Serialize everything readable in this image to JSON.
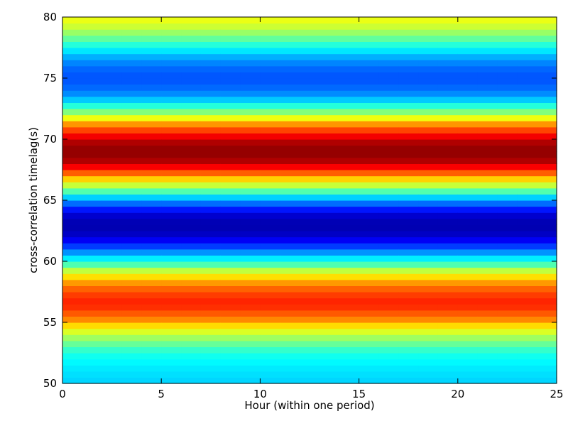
{
  "chart_data": {
    "type": "heatmap",
    "title": "",
    "xlabel": "Hour (within one period)",
    "ylabel": "cross-correlation timelag(s)",
    "xlim": [
      0,
      25
    ],
    "ylim": [
      50,
      80
    ],
    "x_ticks": [
      0,
      5,
      10,
      15,
      20,
      25
    ],
    "y_ticks": [
      50,
      55,
      60,
      65,
      70,
      75,
      80
    ],
    "colormap": "jet",
    "x_bins": 25,
    "profile": [
      {
        "lag": 50,
        "value": 0.33
      },
      {
        "lag": 51.5,
        "value": 0.36
      },
      {
        "lag": 52.5,
        "value": 0.4
      },
      {
        "lag": 53.5,
        "value": 0.5
      },
      {
        "lag": 54.5,
        "value": 0.62
      },
      {
        "lag": 55.3,
        "value": 0.75
      },
      {
        "lag": 56.5,
        "value": 0.85
      },
      {
        "lag": 57.2,
        "value": 0.82
      },
      {
        "lag": 58.0,
        "value": 0.76
      },
      {
        "lag": 59.0,
        "value": 0.62
      },
      {
        "lag": 59.8,
        "value": 0.44
      },
      {
        "lag": 60.8,
        "value": 0.26
      },
      {
        "lag": 61.5,
        "value": 0.14
      },
      {
        "lag": 62.2,
        "value": 0.07
      },
      {
        "lag": 63.0,
        "value": 0.04
      },
      {
        "lag": 63.8,
        "value": 0.08
      },
      {
        "lag": 64.5,
        "value": 0.18
      },
      {
        "lag": 65.3,
        "value": 0.34
      },
      {
        "lag": 66.0,
        "value": 0.52
      },
      {
        "lag": 66.8,
        "value": 0.68
      },
      {
        "lag": 67.5,
        "value": 0.84
      },
      {
        "lag": 68.2,
        "value": 0.95
      },
      {
        "lag": 69.0,
        "value": 0.99
      },
      {
        "lag": 69.8,
        "value": 0.95
      },
      {
        "lag": 70.5,
        "value": 0.85
      },
      {
        "lag": 71.3,
        "value": 0.72
      },
      {
        "lag": 72.0,
        "value": 0.55
      },
      {
        "lag": 72.8,
        "value": 0.4
      },
      {
        "lag": 73.5,
        "value": 0.28
      },
      {
        "lag": 74.5,
        "value": 0.21
      },
      {
        "lag": 75.5,
        "value": 0.21
      },
      {
        "lag": 76.5,
        "value": 0.27
      },
      {
        "lag": 77.5,
        "value": 0.38
      },
      {
        "lag": 78.5,
        "value": 0.5
      },
      {
        "lag": 79.3,
        "value": 0.58
      },
      {
        "lag": 80,
        "value": 0.62
      }
    ]
  }
}
